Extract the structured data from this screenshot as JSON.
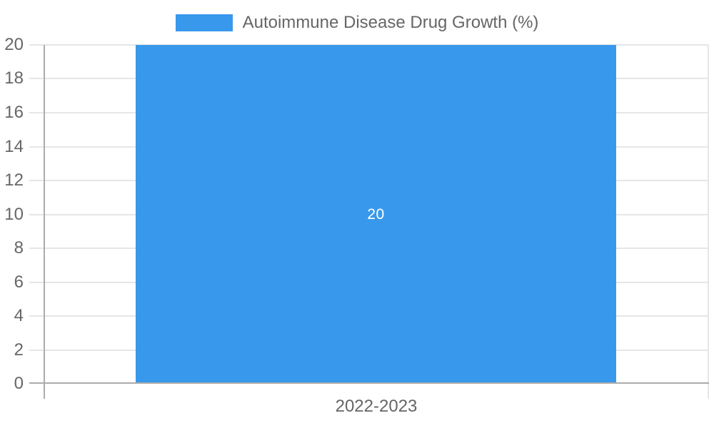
{
  "chart_data": {
    "type": "bar",
    "title": "",
    "categories": [
      "2022-2023"
    ],
    "series": [
      {
        "name": "Autoimmune Disease Drug Growth (%)",
        "values": [
          20
        ]
      }
    ],
    "bar_value_labels": [
      "20"
    ],
    "xlabel": "",
    "ylabel": "",
    "ylim": [
      0,
      20
    ],
    "yticks": [
      0,
      2,
      4,
      6,
      8,
      10,
      12,
      14,
      16,
      18,
      20
    ],
    "grid": true,
    "legend_position": "top-center"
  },
  "legend": {
    "label": "Autoimmune Disease Drug Growth (%)"
  },
  "axes": {
    "x_category": "2022-2023",
    "y_tick_labels": [
      "0",
      "2",
      "4",
      "6",
      "8",
      "10",
      "12",
      "14",
      "16",
      "18",
      "20"
    ]
  },
  "bar": {
    "value_label": "20"
  },
  "colors": {
    "bar": "#3899EC",
    "gridline": "#E6E6E6",
    "axis_line": "#ABABAB",
    "tick_text": "#666666",
    "bar_label_text": "#FFFFFF",
    "background": "#FFFFFF"
  }
}
